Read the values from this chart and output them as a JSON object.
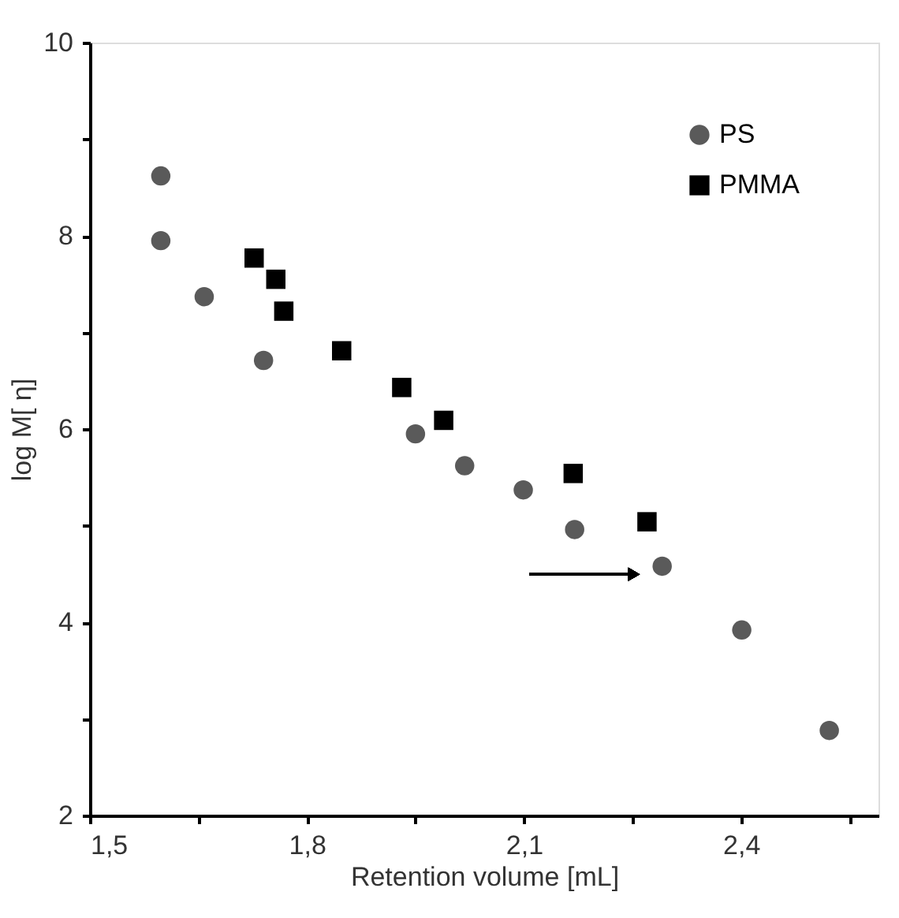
{
  "chart_data": {
    "type": "scatter",
    "xlabel": "Retention volume [mL]",
    "ylabel": "log M[ η]",
    "xlim": [
      1.5,
      2.59
    ],
    "ylim": [
      2,
      10
    ],
    "xticks": [
      {
        "value": 1.5,
        "label": "1,5"
      },
      {
        "value": 1.65,
        "label": null
      },
      {
        "value": 1.8,
        "label": "1,8"
      },
      {
        "value": 1.95,
        "label": null
      },
      {
        "value": 2.1,
        "label": "2,1"
      },
      {
        "value": 2.25,
        "label": null
      },
      {
        "value": 2.4,
        "label": "2,4"
      },
      {
        "value": 2.55,
        "label": null
      }
    ],
    "yticks": [
      2,
      {
        "value": 3,
        "label": null
      },
      4,
      {
        "value": 5,
        "label": null
      },
      6,
      {
        "value": 7,
        "label": null
      },
      8,
      {
        "value": 9,
        "label": null
      },
      10
    ],
    "grid": false,
    "legend": "top right",
    "series": [
      {
        "name": "PS",
        "color": "#5a5a5a",
        "marker": "circle",
        "x": [
          1.598,
          1.598,
          1.658,
          1.74,
          1.95,
          2.018,
          2.099,
          2.17,
          2.291,
          2.401,
          2.522
        ],
        "values": [
          8.62,
          7.95,
          7.37,
          6.71,
          5.95,
          5.62,
          5.37,
          4.96,
          4.58,
          3.92,
          2.88
        ]
      },
      {
        "name": "PMMA",
        "color": "#000000",
        "marker": "square",
        "x": [
          1.727,
          1.757,
          1.768,
          1.848,
          1.931,
          1.989,
          2.168,
          2.27
        ],
        "values": [
          7.77,
          7.55,
          7.22,
          6.81,
          6.43,
          6.09,
          5.54,
          5.04
        ]
      }
    ]
  }
}
